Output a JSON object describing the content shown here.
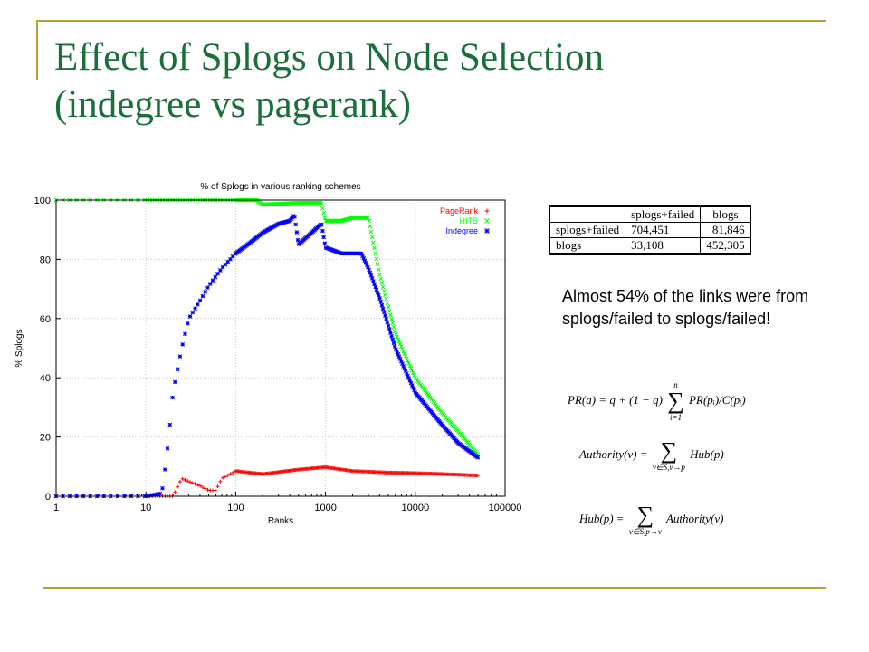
{
  "slide": {
    "title_line1": "Effect of Splogs on Node Selection",
    "title_line2": "(indegree vs pagerank)",
    "accent_color": "#b5a233",
    "title_color": "#1a6f3a"
  },
  "table": {
    "col_headers": [
      "splogs+failed",
      "blogs"
    ],
    "rows": [
      {
        "label": "splogs+failed",
        "values": [
          "704,451",
          "81,846"
        ]
      },
      {
        "label": "blogs",
        "values": [
          "33,108",
          "452,305"
        ]
      }
    ]
  },
  "note": "Almost 54% of the links were from splogs/failed to splogs/failed!",
  "formulas": {
    "pagerank": {
      "lhs": "PR(a) = q + (1 − q)",
      "sum_top": "n",
      "sum_bottom": "i=1",
      "rhs": "PR(pᵢ)/C(pᵢ)"
    },
    "authority": {
      "lhs": "Authority(v) =",
      "sum_bottom": "v∈S,v→p",
      "rhs": "Hub(p)"
    },
    "hub": {
      "lhs": "Hub(p) =",
      "sum_bottom": "v∈S,p→v",
      "rhs": "Authority(v)"
    }
  },
  "chart_data": {
    "type": "scatter",
    "title": "% of Splogs in various ranking schemes",
    "xlabel": "Ranks",
    "ylabel": "% Splogs",
    "xscale": "log",
    "xlim": [
      1,
      100000
    ],
    "ylim": [
      0,
      100
    ],
    "x_ticks": [
      "1",
      "10",
      "100",
      "1000",
      "10000",
      "100000"
    ],
    "y_ticks": [
      "0",
      "20",
      "40",
      "60",
      "80",
      "100"
    ],
    "grid": true,
    "legend_position": "top-right",
    "series": [
      {
        "name": "PageRank",
        "color": "#ff0000",
        "marker": "+",
        "points": [
          [
            1,
            0
          ],
          [
            2,
            0
          ],
          [
            3,
            0
          ],
          [
            5,
            0
          ],
          [
            10,
            0
          ],
          [
            15,
            0
          ],
          [
            20,
            0
          ],
          [
            25,
            6
          ],
          [
            30,
            5
          ],
          [
            40,
            3.5
          ],
          [
            50,
            2
          ],
          [
            60,
            2
          ],
          [
            70,
            6
          ],
          [
            100,
            8.5
          ],
          [
            200,
            7.5
          ],
          [
            500,
            9
          ],
          [
            1000,
            9.8
          ],
          [
            2000,
            8.5
          ],
          [
            5000,
            8
          ],
          [
            10000,
            7.8
          ],
          [
            20000,
            7.5
          ],
          [
            50000,
            7
          ]
        ]
      },
      {
        "name": "HITS",
        "color": "#00ff00",
        "marker": "x",
        "points": [
          [
            1,
            100
          ],
          [
            2,
            100
          ],
          [
            5,
            100
          ],
          [
            10,
            100
          ],
          [
            20,
            100
          ],
          [
            50,
            100
          ],
          [
            100,
            100
          ],
          [
            170,
            100
          ],
          [
            200,
            98.5
          ],
          [
            500,
            99
          ],
          [
            900,
            99
          ],
          [
            1000,
            93
          ],
          [
            1500,
            93
          ],
          [
            2000,
            94
          ],
          [
            3000,
            94
          ],
          [
            4000,
            75
          ],
          [
            6000,
            55
          ],
          [
            10000,
            40
          ],
          [
            20000,
            28
          ],
          [
            30000,
            22
          ],
          [
            50000,
            14
          ]
        ]
      },
      {
        "name": "Indegree",
        "color": "#0000ff",
        "marker": "*",
        "points": [
          [
            1,
            0
          ],
          [
            2,
            0
          ],
          [
            5,
            0
          ],
          [
            10,
            0
          ],
          [
            15,
            1
          ],
          [
            16,
            7
          ],
          [
            18,
            20
          ],
          [
            20,
            35
          ],
          [
            25,
            50
          ],
          [
            30,
            60
          ],
          [
            40,
            66
          ],
          [
            50,
            71
          ],
          [
            70,
            77
          ],
          [
            100,
            82
          ],
          [
            150,
            86
          ],
          [
            200,
            89
          ],
          [
            300,
            92
          ],
          [
            400,
            93
          ],
          [
            450,
            95
          ],
          [
            500,
            85
          ],
          [
            700,
            89
          ],
          [
            900,
            92
          ],
          [
            1000,
            84
          ],
          [
            1500,
            82
          ],
          [
            2000,
            82
          ],
          [
            2500,
            82
          ],
          [
            3000,
            77
          ],
          [
            4000,
            67
          ],
          [
            6000,
            50
          ],
          [
            10000,
            35
          ],
          [
            20000,
            24
          ],
          [
            30000,
            18
          ],
          [
            50000,
            13
          ]
        ]
      }
    ]
  }
}
